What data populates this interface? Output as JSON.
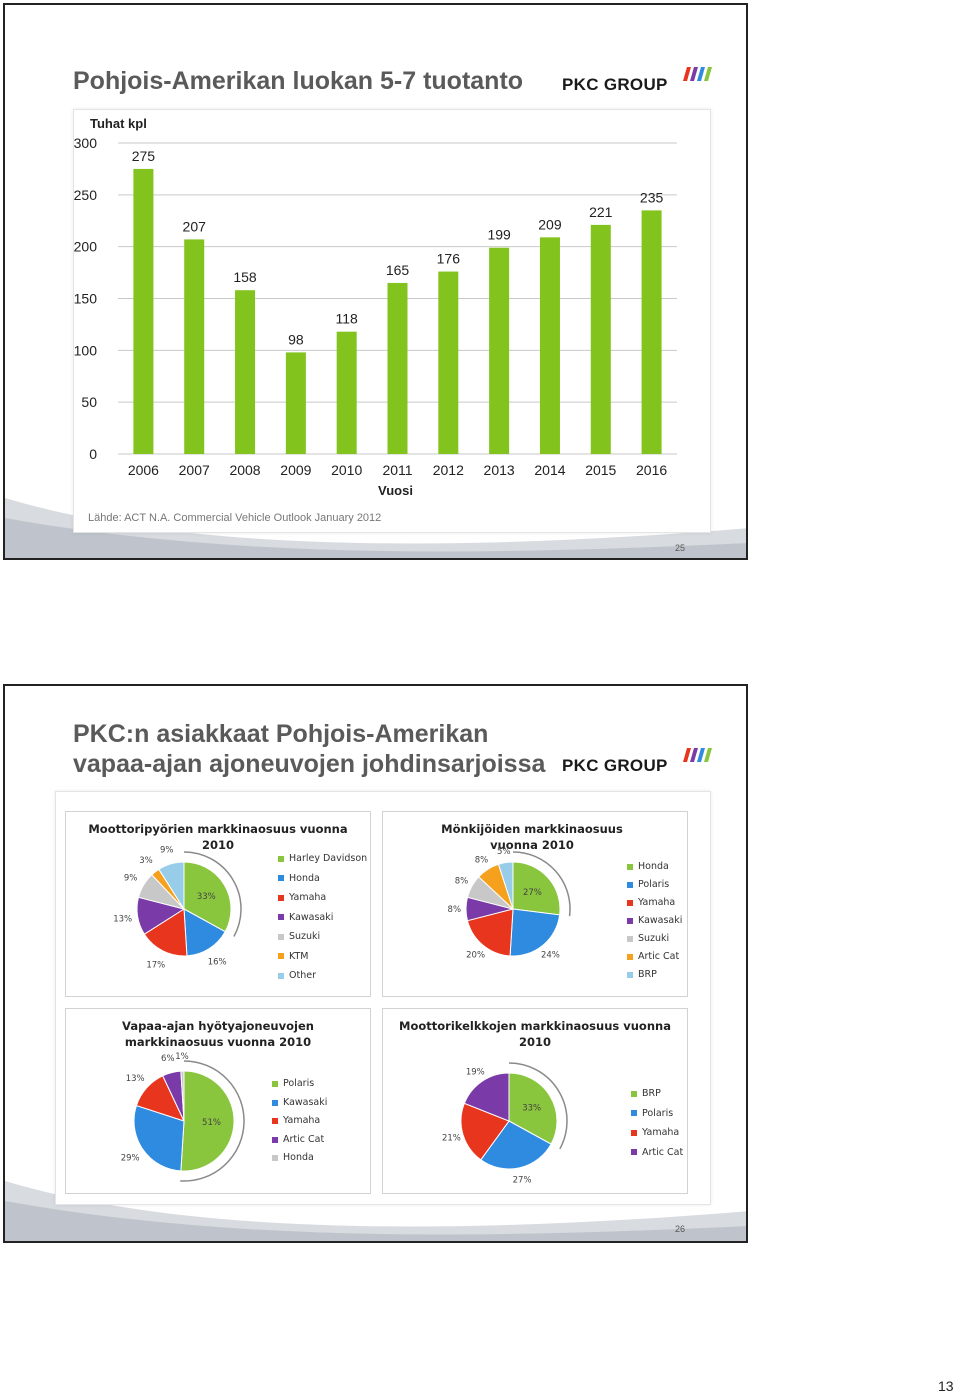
{
  "slide1": {
    "title": "Pohjois-Amerikan luokan 5-7 tuotanto",
    "logo_text": "PKC GROUP",
    "source": "Lähde: ACT N.A. Commercial Vehicle Outlook January 2012",
    "page_number": "25"
  },
  "slide2": {
    "title_line1": "PKC:n asiakkaat Pohjois-Amerikan",
    "title_line2": "vapaa-ajan ajoneuvojen johdinsarjoissa",
    "logo_text": "PKC GROUP",
    "page_number": "26"
  },
  "page_footer": "13",
  "chart_data": [
    {
      "type": "bar",
      "ylabel": "Tuhat kpl",
      "xlabel": "Vuosi",
      "categories": [
        "2006",
        "2007",
        "2008",
        "2009",
        "2010",
        "2011",
        "2012",
        "2013",
        "2014",
        "2015",
        "2016"
      ],
      "values": [
        275,
        207,
        158,
        98,
        118,
        165,
        176,
        199,
        209,
        221,
        235
      ],
      "ylim": [
        0,
        300
      ],
      "yticks": [
        0,
        50,
        100,
        150,
        200,
        250,
        300
      ],
      "grid": true,
      "color": "#82c31e"
    },
    {
      "type": "pie",
      "title_line1": "Moottoripyörien markkinaosuus vuonna",
      "title_line2": "2010",
      "labels": [
        "Harley Davidson",
        "Honda",
        "Yamaha",
        "Kawasaki",
        "Suzuki",
        "KTM",
        "Other"
      ],
      "values": [
        33,
        16,
        17,
        13,
        9,
        3,
        9
      ],
      "value_labels": [
        "33%",
        "16%",
        "17%",
        "13%",
        "9%",
        "3%",
        "9%"
      ],
      "colors": [
        "#8ac53e",
        "#2f8be0",
        "#e8361e",
        "#7a3aa8",
        "#c8c8c8",
        "#f5a11e",
        "#97cde8"
      ],
      "legend": "right"
    },
    {
      "type": "pie",
      "title_line1": "Mönkijöiden markkinaosuus",
      "title_line2": "vuonna 2010",
      "labels": [
        "Honda",
        "Polaris",
        "Yamaha",
        "Kawasaki",
        "Suzuki",
        "Artic Cat",
        "BRP"
      ],
      "values": [
        27,
        24,
        20,
        8,
        8,
        8,
        5
      ],
      "value_labels": [
        "27%",
        "24%",
        "20%",
        "8%",
        "8%",
        "8%",
        "5%"
      ],
      "colors": [
        "#8ac53e",
        "#2f8be0",
        "#e8361e",
        "#7a3aa8",
        "#c8c8c8",
        "#f5a11e",
        "#97cde8"
      ],
      "legend": "right"
    },
    {
      "type": "pie",
      "title_line1": "Vapaa-ajan hyötyajoneuvojen",
      "title_line2": "markkinaosuus vuonna 2010",
      "labels": [
        "Polaris",
        "Kawasaki",
        "Yamaha",
        "Artic Cat",
        "Honda"
      ],
      "values": [
        51,
        29,
        13,
        6,
        1
      ],
      "value_labels": [
        "51%",
        "29%",
        "13%",
        "6%",
        "1%"
      ],
      "colors": [
        "#8ac53e",
        "#2f8be0",
        "#e8361e",
        "#7a3aa8",
        "#c8c8c8"
      ],
      "legend": "right"
    },
    {
      "type": "pie",
      "title_line1": "Moottorikelkkojen markkinaosuus vuonna",
      "title_line2": "2010",
      "labels": [
        "BRP",
        "Polaris",
        "Yamaha",
        "Artic Cat"
      ],
      "values": [
        33,
        27,
        21,
        19
      ],
      "value_labels": [
        "33%",
        "27%",
        "21%",
        "19%"
      ],
      "colors": [
        "#8ac53e",
        "#2f8be0",
        "#e8361e",
        "#7a3aa8"
      ],
      "legend": "right"
    }
  ]
}
